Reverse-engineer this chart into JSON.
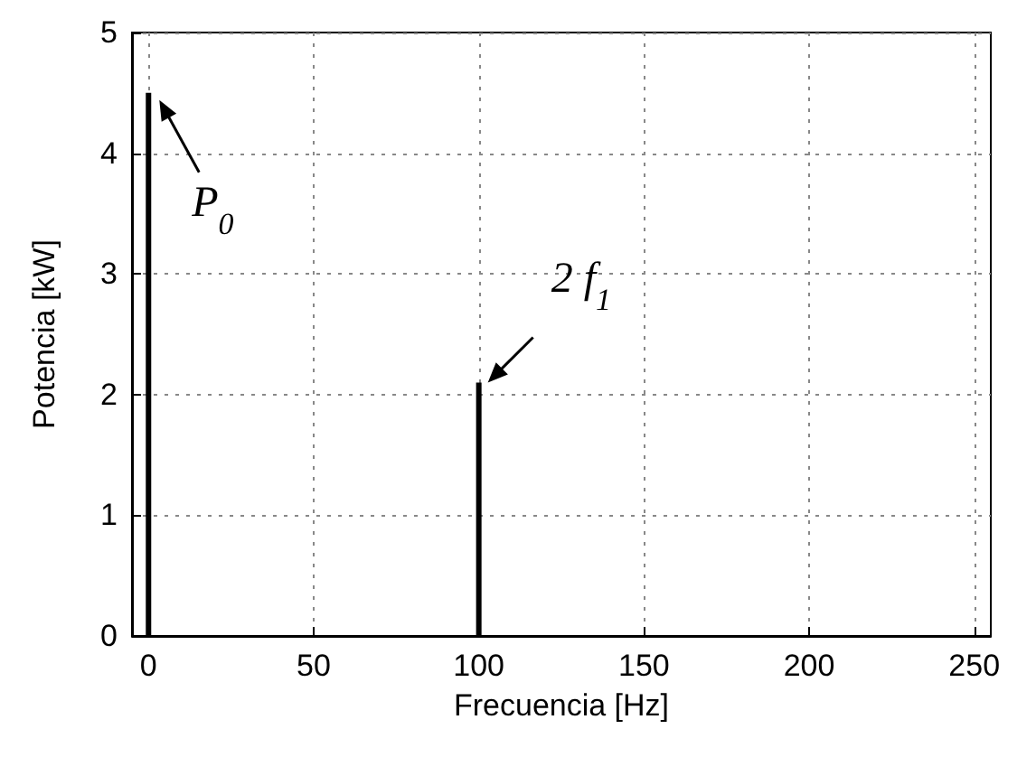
{
  "chart_data": {
    "type": "bar",
    "xlabel": "Frecuencia [Hz]",
    "ylabel": "Potencia [kW]",
    "x": [
      0,
      100
    ],
    "values": [
      4.5,
      2.1
    ],
    "color": "#000000",
    "annotations": [
      {
        "text": "P$_{0}$",
        "x": 0,
        "y": 4.5
      },
      {
        "text": "2 f$_{1}$",
        "x": 100,
        "y": 2.1
      }
    ],
    "xlim": [
      -5,
      255
    ],
    "xticks": [
      0,
      50,
      100,
      150,
      200,
      250
    ],
    "ylim": [
      0,
      5
    ],
    "yticks": [
      0,
      1,
      2,
      3,
      4,
      5
    ],
    "grid": true
  }
}
